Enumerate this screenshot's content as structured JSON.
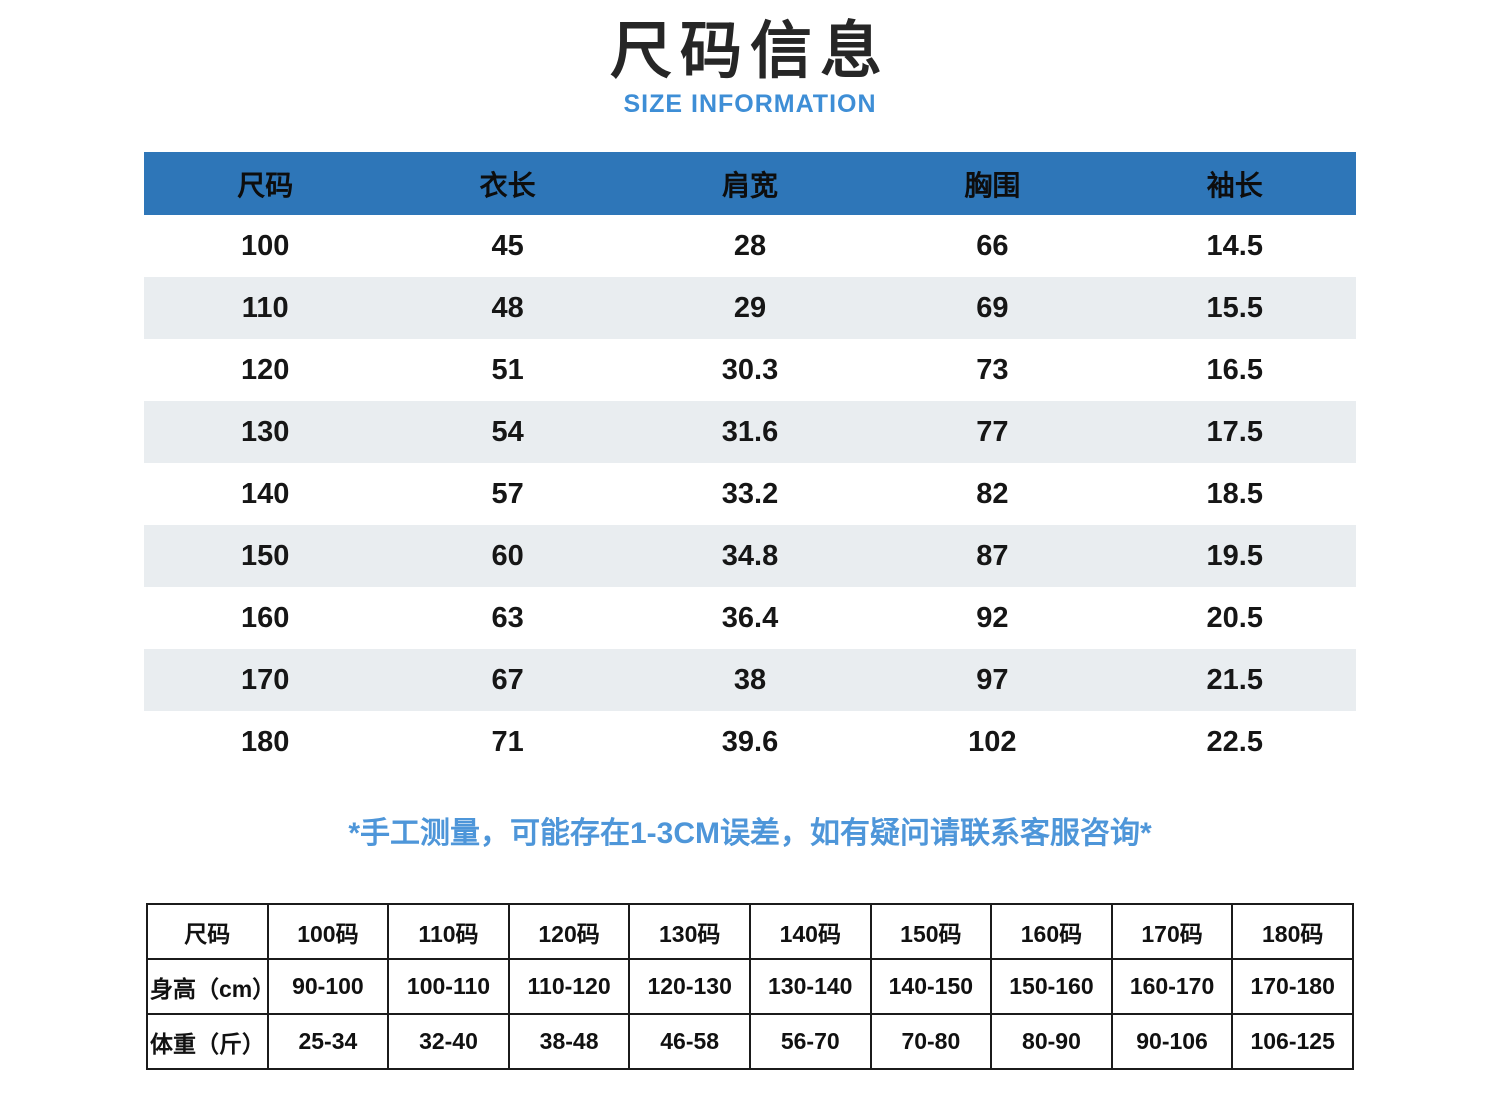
{
  "page": {
    "title": "尺码信息",
    "subtitle": "SIZE INFORMATION",
    "note": "*手工测量，可能存在1-3CM误差，如有疑问请联系客服咨询*"
  },
  "colors": {
    "header_blue": "#2e76b8",
    "subtitle_blue": "#3e8ed6",
    "note_blue": "#4e96d9",
    "stripe_gray": "#e9edf0",
    "text_dark": "#1f1f1f",
    "border_dark": "#1b1b1b"
  },
  "size_table": {
    "header": [
      "尺码",
      "衣长",
      "肩宽",
      "胸围",
      "袖长"
    ],
    "rows": [
      [
        "100",
        "45",
        "28",
        "66",
        "14.5"
      ],
      [
        "110",
        "48",
        "29",
        "69",
        "15.5"
      ],
      [
        "120",
        "51",
        "30.3",
        "73",
        "16.5"
      ],
      [
        "130",
        "54",
        "31.6",
        "77",
        "17.5"
      ],
      [
        "140",
        "57",
        "33.2",
        "82",
        "18.5"
      ],
      [
        "150",
        "60",
        "34.8",
        "87",
        "19.5"
      ],
      [
        "160",
        "63",
        "36.4",
        "92",
        "20.5"
      ],
      [
        "170",
        "67",
        "38",
        "97",
        "21.5"
      ],
      [
        "180",
        "71",
        "39.6",
        "102",
        "22.5"
      ]
    ]
  },
  "reference_table": {
    "rows": [
      [
        "尺码",
        "100码",
        "110码",
        "120码",
        "130码",
        "140码",
        "150码",
        "160码",
        "170码",
        "180码"
      ],
      [
        "身高（cm）",
        "90-100",
        "100-110",
        "110-120",
        "120-130",
        "130-140",
        "140-150",
        "150-160",
        "160-170",
        "170-180"
      ],
      [
        "体重（斤）",
        "25-34",
        "32-40",
        "38-48",
        "46-58",
        "56-70",
        "70-80",
        "80-90",
        "90-106",
        "106-125"
      ]
    ]
  }
}
